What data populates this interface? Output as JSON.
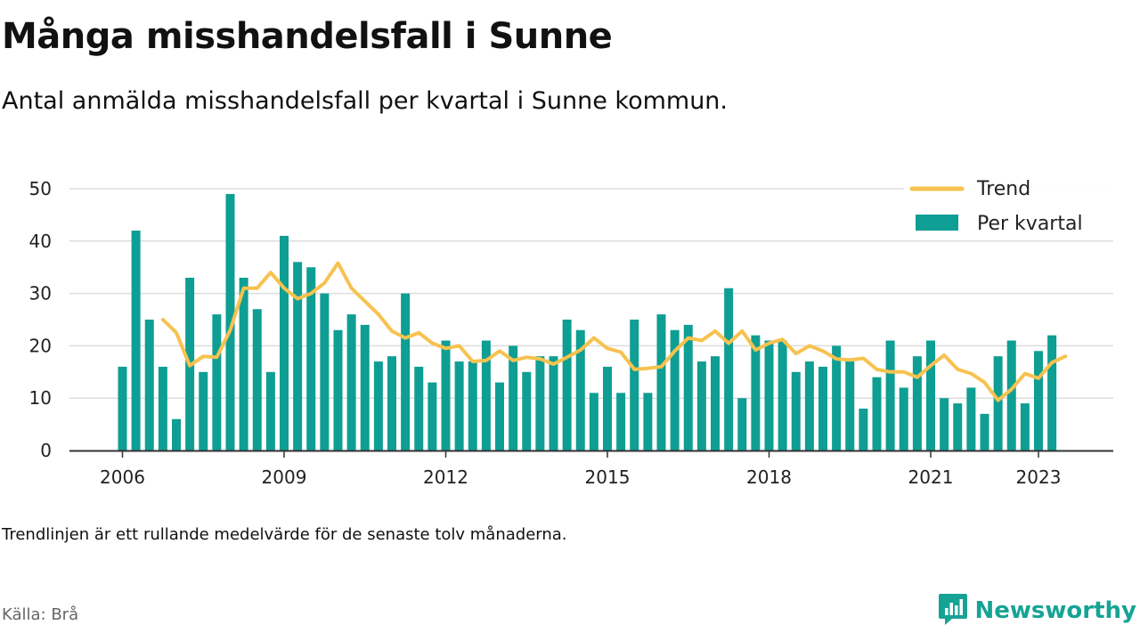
{
  "header": {
    "title": "Många misshandelsfall i Sunne",
    "subtitle": "Antal anmälda misshandelsfall per kvartal i Sunne kommun."
  },
  "footer": {
    "note": "Trendlinjen är ett rullande medelvärde för de senaste tolv månaderna.",
    "source": "Källa: Brå",
    "brand": "Newsworthy"
  },
  "colors": {
    "bars": "#0f9e93",
    "trend": "#f7c24f",
    "grid": "#dddddd",
    "axis": "#333333",
    "brand": "#16a394"
  },
  "chart_data": {
    "type": "bar",
    "xlabel": "",
    "ylabel": "",
    "ylim": [
      0,
      50
    ],
    "yticks": [
      0,
      10,
      20,
      30,
      40,
      50
    ],
    "x_range": [
      2005.5,
      2024.5
    ],
    "x_ticks": [
      {
        "value": 2006,
        "label": "2006"
      },
      {
        "value": 2009,
        "label": "2009"
      },
      {
        "value": 2012,
        "label": "2012"
      },
      {
        "value": 2015,
        "label": "2015"
      },
      {
        "value": 2018,
        "label": "2018"
      },
      {
        "value": 2021,
        "label": "2021"
      },
      {
        "value": 2023,
        "label": "2023"
      }
    ],
    "legend_position": "top-right",
    "series": [
      {
        "name": "Per kvartal",
        "type": "bar",
        "start_year": 2006,
        "values": [
          16,
          42,
          25,
          16,
          6,
          33,
          15,
          26,
          49,
          33,
          27,
          15,
          41,
          36,
          35,
          30,
          23,
          26,
          24,
          17,
          18,
          30,
          16,
          13,
          21,
          17,
          17,
          21,
          13,
          20,
          15,
          18,
          18,
          25,
          23,
          11,
          16,
          11,
          25,
          11,
          26,
          23,
          24,
          17,
          18,
          31,
          10,
          22,
          21,
          21,
          15,
          17,
          16,
          20,
          17,
          8,
          14,
          21,
          12,
          18,
          21,
          10,
          9,
          12,
          7,
          18,
          21,
          9,
          19,
          22
        ]
      },
      {
        "name": "Trend",
        "type": "line",
        "start_year": 2006.75,
        "values": [
          25,
          22.5,
          16.2,
          18,
          17.8,
          23,
          31,
          31,
          34,
          31,
          29,
          30,
          32,
          35.8,
          31,
          28.5,
          26,
          22.8,
          21.5,
          22.5,
          20.5,
          19.5,
          20,
          17,
          17.2,
          19,
          17.2,
          17.8,
          17.5,
          16.5,
          17.8,
          19.2,
          21.5,
          19.5,
          18.8,
          15.5,
          15.7,
          16,
          19,
          21.5,
          21,
          22.8,
          20.5,
          22.8,
          19.2,
          20.5,
          21.2,
          18.5,
          20,
          19,
          17.5,
          17.3,
          17.6,
          15.5,
          15,
          15,
          14,
          16.2,
          18.2,
          15.5,
          14.7,
          13,
          9.6,
          11.7,
          14.7,
          13.8,
          16.8,
          18
        ]
      }
    ]
  }
}
